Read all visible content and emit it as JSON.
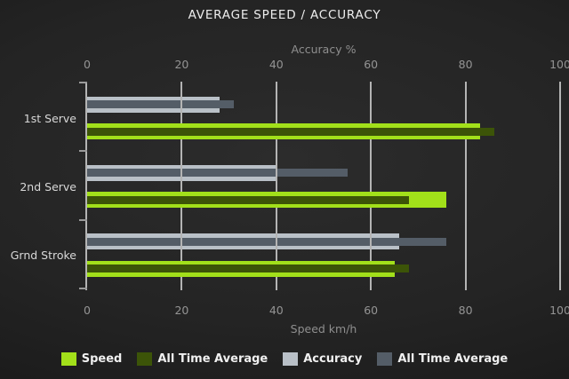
{
  "title": "AVERAGE SPEED / ACCURACY",
  "chart_data": {
    "type": "bar",
    "orientation": "horizontal",
    "categories": [
      "1st Serve",
      "2nd Serve",
      "Grnd Stroke"
    ],
    "series": [
      {
        "name": "Speed",
        "axis": "bottom",
        "color": "#a2e01a",
        "style": "thick",
        "values": [
          83,
          76,
          65
        ]
      },
      {
        "name": "All Time Average",
        "axis": "bottom",
        "color": "#3c5408",
        "style": "thin-overlay",
        "values": [
          86,
          68,
          68
        ]
      },
      {
        "name": "Accuracy",
        "axis": "top",
        "color": "#b9c0c7",
        "style": "thick",
        "values": [
          28,
          40,
          66
        ]
      },
      {
        "name": "All Time Average",
        "axis": "top",
        "color": "#545d67",
        "style": "thin-overlay",
        "values": [
          31,
          55,
          76
        ]
      }
    ],
    "legend_order": [
      "Speed",
      "All Time Average",
      "Accuracy",
      "All Time Average"
    ],
    "top_axis": {
      "label": "Accuracy %",
      "ticks": [
        0,
        20,
        40,
        60,
        80,
        100
      ],
      "range": [
        0,
        100
      ]
    },
    "bottom_axis": {
      "label": "Speed km/h",
      "ticks": [
        0,
        20,
        40,
        60,
        80,
        100
      ],
      "range": [
        0,
        100
      ]
    },
    "grid": true,
    "legend_position": "bottom"
  },
  "colors": {
    "background": "#222222",
    "gridline": "#b4b4b4",
    "title_text": "#ededed",
    "axis_title_text": "#8f8f8f",
    "tick_text": "#949494",
    "category_text": "#d8d8d8",
    "legend_text": "#f0f0f0"
  }
}
